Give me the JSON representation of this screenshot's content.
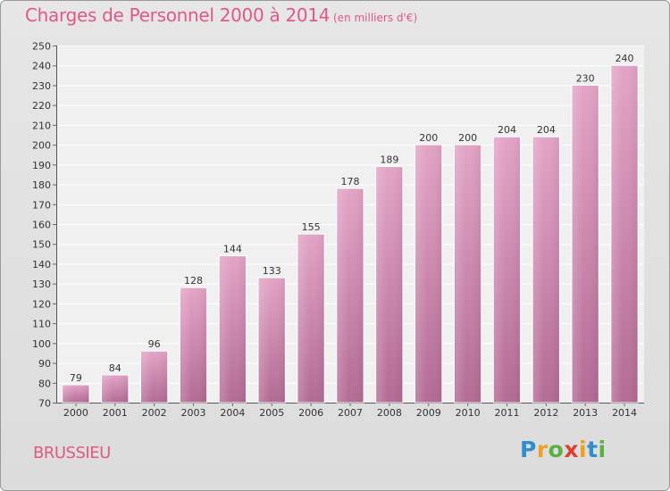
{
  "header": {
    "title": "Charges de Personnel 2000 à 2014",
    "subtitle": "(en milliers d'€)"
  },
  "footer": {
    "commune": "BRUSSIEU",
    "logo_text": "Proxiti",
    "logo_letters": [
      {
        "ch": "P",
        "color": "#2e8ecf"
      },
      {
        "ch": "r",
        "color": "#f0a020"
      },
      {
        "ch": "o",
        "color": "#5bb043"
      },
      {
        "ch": "x",
        "color": "#e03c31"
      },
      {
        "ch": "i",
        "color": "#f0a020"
      },
      {
        "ch": "t",
        "color": "#2e8ecf"
      },
      {
        "ch": "i",
        "color": "#5bb043"
      }
    ]
  },
  "chart_data": {
    "type": "bar",
    "categories": [
      "2000",
      "2001",
      "2002",
      "2003",
      "2004",
      "2005",
      "2006",
      "2007",
      "2008",
      "2009",
      "2010",
      "2011",
      "2012",
      "2013",
      "2014"
    ],
    "values": [
      79,
      84,
      96,
      128,
      144,
      133,
      155,
      178,
      189,
      200,
      200,
      204,
      204,
      230,
      240
    ],
    "ylim": [
      70,
      250
    ],
    "yticks": [
      70,
      80,
      90,
      100,
      110,
      120,
      130,
      140,
      150,
      160,
      170,
      180,
      190,
      200,
      210,
      220,
      230,
      240,
      250
    ],
    "grid": true,
    "bar_color": "#d98ab4",
    "bar_color_dark": "#b86d97"
  }
}
